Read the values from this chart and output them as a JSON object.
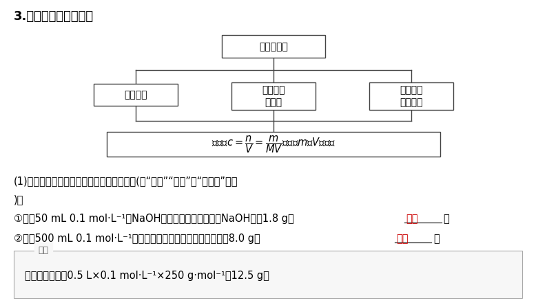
{
  "title": "3.误差分析的思维流程",
  "background_color": "#ffffff",
  "root_text": "误差的引入",
  "left_text": "操作不当",
  "mid_text": "药品中含\n有杂质",
  "right_text": "定量仪器\n使用不当",
  "formula_text": "牢记：$c=\\dfrac{n}{V}=\\dfrac{m}{MV}$，分析$m$和$V$的变化",
  "para1_text": "(1)从改变溶质物质的量角度分析产生的误差(用“偏大”“偏小”或“无影响”填空\n)。",
  "line1_text": "①配刴50 mL 0.1 mol·L⁻¹的NaOH溶液，用托盘天平称取NaOH固体1.8 g：",
  "line2_text": "②配制500 mL 0.1 mol·L⁻¹的硫酸铜溶液，用托盘天平称取胆矾8.0 g：",
  "answer_text": "偏小",
  "answer_color": "#cc0000",
  "text_color": "#000000",
  "box_edge_color": "#444444",
  "analysis_label": "解析",
  "analysis_content": "所需胆矾质量为0.5 L×0.1 mol·L⁻¹×250 g·mol⁻¹＝12.5 g。"
}
